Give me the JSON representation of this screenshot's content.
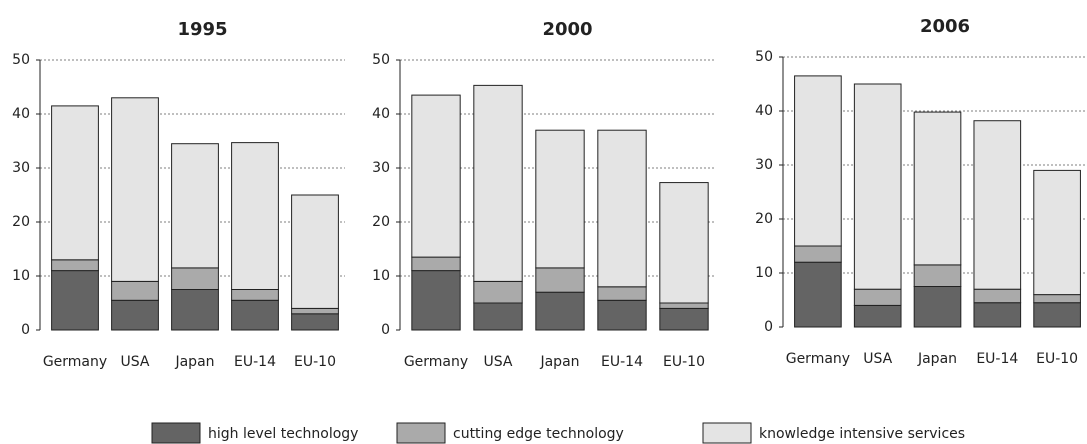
{
  "chart_data": [
    {
      "type": "bar",
      "stacked": true,
      "title": "1995",
      "categories": [
        "Germany",
        "USA",
        "Japan",
        "EU-14",
        "EU-10"
      ],
      "series": [
        {
          "name": "high level technology",
          "color": "#646464",
          "values": [
            11,
            5.5,
            7.5,
            5.5,
            3
          ]
        },
        {
          "name": "cutting edge technology",
          "color": "#aaaaaa",
          "values": [
            2,
            3.5,
            4,
            2,
            1
          ]
        },
        {
          "name": "knowledge intensive services",
          "color": "#e4e4e4",
          "values": [
            28.5,
            34,
            23,
            27.2,
            21
          ]
        }
      ],
      "ylim": [
        0,
        50
      ],
      "yticks": [
        0,
        10,
        20,
        30,
        40,
        50
      ],
      "grid": true
    },
    {
      "type": "bar",
      "stacked": true,
      "title": "2000",
      "categories": [
        "Germany",
        "USA",
        "Japan",
        "EU-14",
        "EU-10"
      ],
      "series": [
        {
          "name": "high level technology",
          "color": "#646464",
          "values": [
            11,
            5,
            7,
            5.5,
            4
          ]
        },
        {
          "name": "cutting edge technology",
          "color": "#aaaaaa",
          "values": [
            2.5,
            4,
            4.5,
            2.5,
            1
          ]
        },
        {
          "name": "knowledge intensive services",
          "color": "#e4e4e4",
          "values": [
            30,
            36.3,
            25.5,
            29,
            22.3
          ]
        }
      ],
      "ylim": [
        0,
        50
      ],
      "yticks": [
        0,
        10,
        20,
        30,
        40,
        50
      ],
      "grid": true
    },
    {
      "type": "bar",
      "stacked": true,
      "title": "2006",
      "categories": [
        "Germany",
        "USA",
        "Japan",
        "EU-14",
        "EU-10"
      ],
      "series": [
        {
          "name": "high level technology",
          "color": "#646464",
          "values": [
            12,
            4,
            7.5,
            4.5,
            4.5
          ]
        },
        {
          "name": "cutting edge technology",
          "color": "#aaaaaa",
          "values": [
            3,
            3,
            4,
            2.5,
            1.5
          ]
        },
        {
          "name": "knowledge intensive services",
          "color": "#e4e4e4",
          "values": [
            31.5,
            38,
            28.3,
            31.2,
            23
          ]
        }
      ],
      "ylim": [
        0,
        50
      ],
      "yticks": [
        0,
        10,
        20,
        30,
        40,
        50
      ],
      "grid": true
    }
  ]
}
